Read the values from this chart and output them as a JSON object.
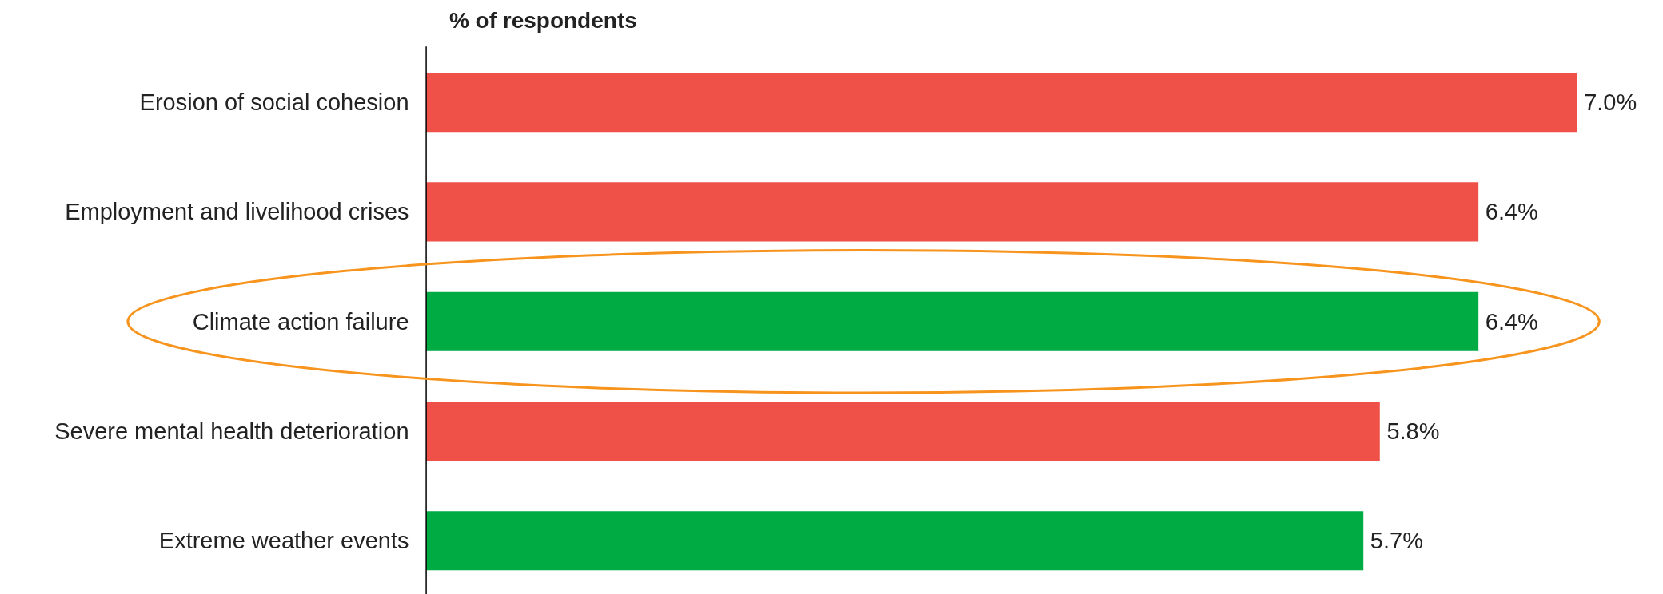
{
  "chart_data": {
    "type": "bar",
    "orientation": "horizontal",
    "xlabel": "% of respondents",
    "categories": [
      "Erosion of social cohesion",
      "Employment and livelihood crises",
      "Climate action failure",
      "Severe mental health deterioration",
      "Extreme weather events"
    ],
    "values": [
      7.0,
      6.4,
      6.4,
      5.8,
      5.7
    ],
    "colors": [
      "#ef5048",
      "#ef5048",
      "#00ab44",
      "#ef5048",
      "#00ab44"
    ],
    "value_labels": [
      "7.0%",
      "6.4%",
      "6.4%",
      "5.8%",
      "5.7%"
    ],
    "grid": false
  }
}
